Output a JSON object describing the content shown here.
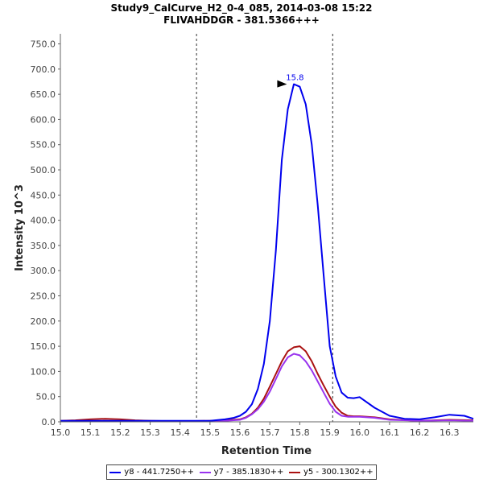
{
  "chart_data": {
    "type": "line",
    "title": "Study9_CalCurve_H2_0-4_085, 2014-03-08 15:22",
    "subtitle": "FLIVAHDDGR - 381.5366+++",
    "xlabel": "Retention Time",
    "ylabel": "Intensity 10^3",
    "xlim": [
      15.0,
      16.38
    ],
    "ylim": [
      0,
      770
    ],
    "xticks": [
      "15.0",
      "15.1",
      "15.2",
      "15.3",
      "15.4",
      "15.5",
      "15.6",
      "15.7",
      "15.8",
      "15.9",
      "16.0",
      "16.1",
      "16.2",
      "16.3"
    ],
    "yticks": [
      "0.0",
      "50.0",
      "100.0",
      "150.0",
      "200.0",
      "250.0",
      "300.0",
      "350.0",
      "400.0",
      "450.0",
      "500.0",
      "550.0",
      "600.0",
      "650.0",
      "700.0",
      "750.0"
    ],
    "legend_position": "bottom",
    "vlines": [
      15.455,
      15.91
    ],
    "annotation": {
      "text": "15.8",
      "x": 15.757,
      "y": 670
    },
    "series": [
      {
        "name": "y8 - 441.7250++",
        "color": "#0000ee",
        "x": [
          15.0,
          15.1,
          15.2,
          15.3,
          15.4,
          15.45,
          15.5,
          15.55,
          15.58,
          15.6,
          15.62,
          15.64,
          15.66,
          15.68,
          15.7,
          15.72,
          15.74,
          15.76,
          15.78,
          15.8,
          15.82,
          15.84,
          15.86,
          15.88,
          15.9,
          15.92,
          15.94,
          15.96,
          15.98,
          16.0,
          16.05,
          16.1,
          16.15,
          16.2,
          16.25,
          16.3,
          16.35,
          16.38
        ],
        "y": [
          2,
          2,
          2,
          2,
          2,
          2,
          2,
          5,
          8,
          12,
          20,
          35,
          65,
          115,
          200,
          340,
          520,
          620,
          670,
          665,
          630,
          550,
          430,
          290,
          150,
          90,
          58,
          48,
          47,
          49,
          28,
          12,
          6,
          5,
          9,
          14,
          12,
          6
        ]
      },
      {
        "name": "y7 - 385.1830++",
        "color": "#9933ee",
        "x": [
          15.0,
          15.1,
          15.2,
          15.3,
          15.4,
          15.5,
          15.55,
          15.6,
          15.62,
          15.64,
          15.66,
          15.68,
          15.7,
          15.72,
          15.74,
          15.76,
          15.78,
          15.8,
          15.82,
          15.84,
          15.86,
          15.88,
          15.9,
          15.92,
          15.94,
          15.96,
          15.98,
          16.0,
          16.05,
          16.1,
          16.2,
          16.3,
          16.38
        ],
        "y": [
          1,
          1,
          1,
          1,
          1,
          1,
          2,
          4,
          8,
          15,
          25,
          40,
          60,
          85,
          110,
          128,
          135,
          132,
          120,
          102,
          80,
          58,
          36,
          20,
          12,
          10,
          10,
          10,
          8,
          4,
          2,
          3,
          2
        ]
      },
      {
        "name": "y5 - 300.1302++",
        "color": "#aa1111",
        "x": [
          15.0,
          15.05,
          15.1,
          15.15,
          15.2,
          15.25,
          15.3,
          15.4,
          15.5,
          15.55,
          15.6,
          15.62,
          15.64,
          15.66,
          15.68,
          15.7,
          15.72,
          15.74,
          15.76,
          15.78,
          15.8,
          15.82,
          15.84,
          15.86,
          15.88,
          15.9,
          15.92,
          15.94,
          15.96,
          15.98,
          16.0,
          16.05,
          16.1,
          16.2,
          16.3,
          16.38
        ],
        "y": [
          2,
          3,
          5,
          6,
          5,
          3,
          2,
          1,
          2,
          3,
          5,
          9,
          16,
          28,
          46,
          70,
          95,
          120,
          140,
          148,
          150,
          140,
          120,
          95,
          72,
          50,
          30,
          18,
          12,
          11,
          11,
          9,
          5,
          2,
          4,
          3
        ]
      }
    ]
  }
}
